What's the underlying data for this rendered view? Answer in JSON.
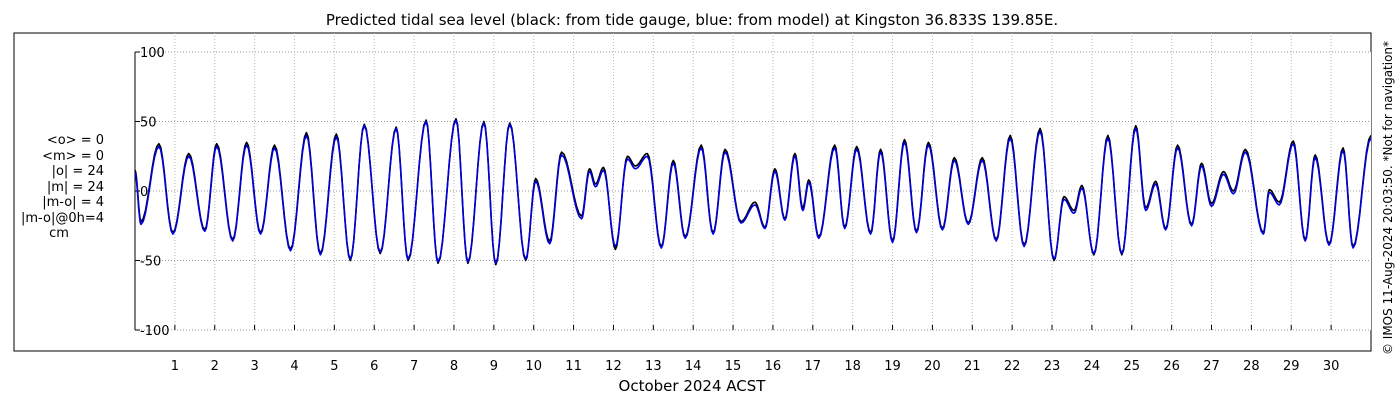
{
  "chart_data": {
    "type": "line",
    "title": "Predicted tidal sea level (black: from tide gauge, blue: from model) at Kingston 36.833S 139.85E.",
    "xlabel": "October 2024 ACST",
    "ylabel": "",
    "ylim": [
      -100,
      100
    ],
    "xlim_days": [
      0,
      31
    ],
    "yticks": [
      -100,
      -50,
      0,
      50,
      100
    ],
    "ytick_labels": [
      "-100",
      "-50",
      "0",
      "50",
      "100"
    ],
    "xtick_labels": [
      "1",
      "2",
      "3",
      "4",
      "5",
      "6",
      "7",
      "8",
      "9",
      "10",
      "11",
      "12",
      "13",
      "14",
      "15",
      "16",
      "17",
      "18",
      "19",
      "20",
      "21",
      "22",
      "23",
      "24",
      "25",
      "26",
      "27",
      "28",
      "29",
      "30"
    ],
    "grid": true,
    "side_stats": [
      "<o> = 0",
      "<m> = 0",
      "|o| = 24",
      "|m| = 24",
      "|m-o| = 4",
      "|m-o|@0h=4"
    ],
    "unit_label": "cm",
    "copyright": "© IMOS 11-Aug-2024 20:03:50. *Not for navigation*",
    "series": [
      {
        "name": "black: from tide gauge",
        "color": "#000000",
        "extrema": [
          [
            0.0,
            15
          ],
          [
            0.15,
            -22
          ],
          [
            0.6,
            34
          ],
          [
            0.95,
            -30
          ],
          [
            1.35,
            27
          ],
          [
            1.75,
            -28
          ],
          [
            2.05,
            34
          ],
          [
            2.45,
            -35
          ],
          [
            2.8,
            35
          ],
          [
            3.15,
            -30
          ],
          [
            3.5,
            33
          ],
          [
            3.9,
            -42
          ],
          [
            4.3,
            42
          ],
          [
            4.65,
            -45
          ],
          [
            5.05,
            41
          ],
          [
            5.4,
            -50
          ],
          [
            5.75,
            48
          ],
          [
            6.15,
            -45
          ],
          [
            6.55,
            46
          ],
          [
            6.85,
            -50
          ],
          [
            7.3,
            51
          ],
          [
            7.6,
            -52
          ],
          [
            8.05,
            52
          ],
          [
            8.35,
            -52
          ],
          [
            8.75,
            50
          ],
          [
            9.05,
            -53
          ],
          [
            9.4,
            49
          ],
          [
            9.8,
            -50
          ],
          [
            10.05,
            9
          ],
          [
            10.4,
            -36
          ],
          [
            10.7,
            28
          ],
          [
            11.2,
            -18
          ],
          [
            11.4,
            16
          ],
          [
            11.55,
            5
          ],
          [
            11.75,
            17
          ],
          [
            12.05,
            -42
          ],
          [
            12.35,
            25
          ],
          [
            12.55,
            18
          ],
          [
            12.85,
            27
          ],
          [
            13.2,
            -40
          ],
          [
            13.5,
            22
          ],
          [
            13.8,
            -33
          ],
          [
            14.2,
            33
          ],
          [
            14.5,
            -30
          ],
          [
            14.8,
            30
          ],
          [
            15.2,
            -22
          ],
          [
            15.55,
            -8
          ],
          [
            15.8,
            -26
          ],
          [
            16.05,
            16
          ],
          [
            16.3,
            -20
          ],
          [
            16.55,
            27
          ],
          [
            16.75,
            -12
          ],
          [
            16.9,
            8
          ],
          [
            17.15,
            -33
          ],
          [
            17.55,
            33
          ],
          [
            17.8,
            -26
          ],
          [
            18.1,
            32
          ],
          [
            18.45,
            -30
          ],
          [
            18.7,
            30
          ],
          [
            19.0,
            -36
          ],
          [
            19.3,
            37
          ],
          [
            19.6,
            -29
          ],
          [
            19.9,
            35
          ],
          [
            20.25,
            -27
          ],
          [
            20.55,
            24
          ],
          [
            20.9,
            -23
          ],
          [
            21.25,
            24
          ],
          [
            21.6,
            -35
          ],
          [
            21.95,
            40
          ],
          [
            22.3,
            -39
          ],
          [
            22.7,
            45
          ],
          [
            23.05,
            -50
          ],
          [
            23.3,
            -4
          ],
          [
            23.55,
            -14
          ],
          [
            23.75,
            4
          ],
          [
            24.05,
            -46
          ],
          [
            24.4,
            40
          ],
          [
            24.75,
            -46
          ],
          [
            25.1,
            47
          ],
          [
            25.35,
            -12
          ],
          [
            25.6,
            7
          ],
          [
            25.85,
            -27
          ],
          [
            26.15,
            33
          ],
          [
            26.5,
            -24
          ],
          [
            26.75,
            20
          ],
          [
            27.0,
            -9
          ],
          [
            27.3,
            14
          ],
          [
            27.55,
            0
          ],
          [
            27.85,
            30
          ],
          [
            28.3,
            -30
          ],
          [
            28.45,
            1
          ],
          [
            28.7,
            -8
          ],
          [
            29.05,
            36
          ],
          [
            29.35,
            -35
          ],
          [
            29.6,
            26
          ],
          [
            29.95,
            -38
          ],
          [
            30.3,
            31
          ],
          [
            30.55,
            -40
          ],
          [
            31.0,
            40
          ]
        ]
      },
      {
        "name": "blue: from model",
        "color": "#0000dd",
        "extrema": [
          [
            0.0,
            13
          ],
          [
            0.15,
            -24
          ],
          [
            0.6,
            32
          ],
          [
            0.95,
            -31
          ],
          [
            1.35,
            25
          ],
          [
            1.75,
            -29
          ],
          [
            2.05,
            32
          ],
          [
            2.45,
            -36
          ],
          [
            2.8,
            33
          ],
          [
            3.15,
            -31
          ],
          [
            3.5,
            31
          ],
          [
            3.9,
            -43
          ],
          [
            4.3,
            40
          ],
          [
            4.65,
            -46
          ],
          [
            5.05,
            39
          ],
          [
            5.4,
            -49
          ],
          [
            5.75,
            47
          ],
          [
            6.15,
            -44
          ],
          [
            6.55,
            45
          ],
          [
            6.85,
            -49
          ],
          [
            7.3,
            50
          ],
          [
            7.6,
            -51
          ],
          [
            8.05,
            51
          ],
          [
            8.35,
            -51
          ],
          [
            8.75,
            49
          ],
          [
            9.05,
            -52
          ],
          [
            9.4,
            48
          ],
          [
            9.8,
            -49
          ],
          [
            10.05,
            7
          ],
          [
            10.4,
            -38
          ],
          [
            10.7,
            26
          ],
          [
            11.2,
            -20
          ],
          [
            11.4,
            14
          ],
          [
            11.55,
            3
          ],
          [
            11.75,
            15
          ],
          [
            12.05,
            -40
          ],
          [
            12.35,
            23
          ],
          [
            12.55,
            16
          ],
          [
            12.85,
            25
          ],
          [
            13.2,
            -41
          ],
          [
            13.5,
            20
          ],
          [
            13.8,
            -34
          ],
          [
            14.2,
            31
          ],
          [
            14.5,
            -31
          ],
          [
            14.8,
            28
          ],
          [
            15.2,
            -23
          ],
          [
            15.55,
            -10
          ],
          [
            15.8,
            -27
          ],
          [
            16.05,
            14
          ],
          [
            16.3,
            -21
          ],
          [
            16.55,
            25
          ],
          [
            16.75,
            -14
          ],
          [
            16.9,
            6
          ],
          [
            17.15,
            -34
          ],
          [
            17.55,
            31
          ],
          [
            17.8,
            -27
          ],
          [
            18.1,
            30
          ],
          [
            18.45,
            -31
          ],
          [
            18.7,
            28
          ],
          [
            19.0,
            -37
          ],
          [
            19.3,
            35
          ],
          [
            19.6,
            -30
          ],
          [
            19.9,
            33
          ],
          [
            20.25,
            -28
          ],
          [
            20.55,
            22
          ],
          [
            20.9,
            -24
          ],
          [
            21.25,
            22
          ],
          [
            21.6,
            -36
          ],
          [
            21.95,
            38
          ],
          [
            22.3,
            -40
          ],
          [
            22.7,
            43
          ],
          [
            23.05,
            -49
          ],
          [
            23.3,
            -6
          ],
          [
            23.55,
            -16
          ],
          [
            23.75,
            2
          ],
          [
            24.05,
            -45
          ],
          [
            24.4,
            38
          ],
          [
            24.75,
            -45
          ],
          [
            25.1,
            45
          ],
          [
            25.35,
            -14
          ],
          [
            25.6,
            5
          ],
          [
            25.85,
            -28
          ],
          [
            26.15,
            31
          ],
          [
            26.5,
            -25
          ],
          [
            26.75,
            18
          ],
          [
            27.0,
            -11
          ],
          [
            27.3,
            12
          ],
          [
            27.55,
            -2
          ],
          [
            27.85,
            28
          ],
          [
            28.3,
            -31
          ],
          [
            28.45,
            -1
          ],
          [
            28.7,
            -10
          ],
          [
            29.05,
            34
          ],
          [
            29.35,
            -36
          ],
          [
            29.6,
            24
          ],
          [
            29.95,
            -39
          ],
          [
            30.3,
            29
          ],
          [
            30.55,
            -41
          ],
          [
            31.0,
            38
          ]
        ]
      }
    ]
  }
}
